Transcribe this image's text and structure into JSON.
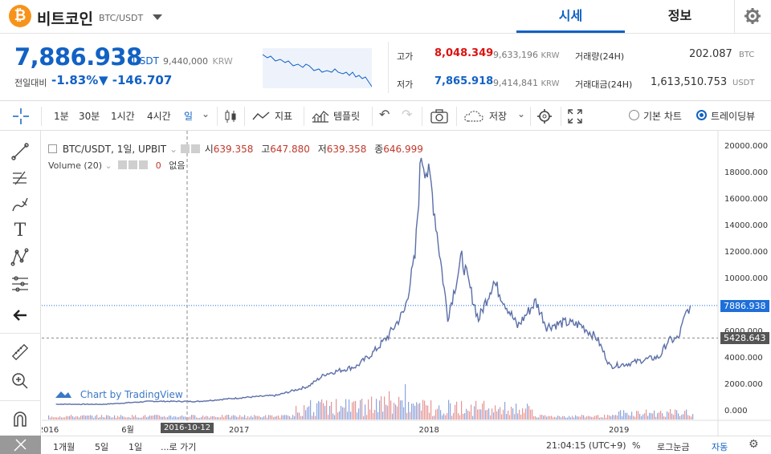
{
  "header": {
    "coin_symbol": "₿",
    "coin_name": "비트코인",
    "pair": "BTC/USDT",
    "tabs": [
      "시세",
      "정보"
    ]
  },
  "price": {
    "current": "7,886.938",
    "unit": "USDT",
    "krw": "9,440,000",
    "krw_unit": "KRW",
    "change_label": "전일대비",
    "change_pct": "-1.83%",
    "change_abs": "▼ -146.707",
    "high_label": "고가",
    "high": "8,048.349",
    "high_krw": "9,633,196",
    "low_label": "저가",
    "low": "7,865.918",
    "low_krw": "9,414,841",
    "krw_unit_small": "KRW",
    "volume_label": "거래량(24H)",
    "volume": "202.087",
    "volume_unit": "BTC",
    "amount_label": "거래대금(24H)",
    "amount": "1,613,510.753",
    "amount_unit": "USDT"
  },
  "toolbar": {
    "intervals": [
      "1분",
      "30분",
      "1시간",
      "4시간",
      "일"
    ],
    "indicators": "지표",
    "templates": "템플릿",
    "save": "저장",
    "basic_chart": "기본 차트",
    "tradingview": "트레이딩뷰"
  },
  "legend": {
    "symbol": "BTC/USDT, 1일, UPBIT",
    "open_label": "시",
    "open": "639.358",
    "high_label": "고",
    "high": "647.880",
    "low_label": "저",
    "low": "639.358",
    "close_label": "종",
    "close": "646.999",
    "volume": "Volume (20)",
    "volume_val": "0",
    "volume_extra": "없음"
  },
  "watermark": "Chart by TradingView",
  "bottom": {
    "ranges": [
      "1개월",
      "5일",
      "1일",
      "...로 가기"
    ],
    "time": "21:04:15 (UTC+9)",
    "percent": "%",
    "log": "로그눈금",
    "auto": "자동"
  },
  "colors": {
    "accent": "#1261c4",
    "up": "#d11",
    "down": "#1261c4"
  },
  "chart_data": {
    "type": "line",
    "title": "BTC/USDT, 1일, UPBIT",
    "y_ticks": [
      "20000.000",
      "18000.000",
      "16000.000",
      "14000.000",
      "12000.000",
      "10000.000",
      "8000.000",
      "6000.000",
      "4000.000",
      "2000.000",
      "0.000"
    ],
    "x_ticks": [
      "2016",
      "6월",
      "2017",
      "2018",
      "2019"
    ],
    "x_highlight": "2016-10-12",
    "ylim": [
      0,
      20000
    ],
    "current_price_label": "7886.938",
    "reference_price_label": "5428.643",
    "current_price": 7886.938,
    "reference_price": 5428.643,
    "x": [
      "2016-01",
      "2016-04",
      "2016-07",
      "2016-10",
      "2017-01",
      "2017-03",
      "2017-05",
      "2017-06",
      "2017-08",
      "2017-09",
      "2017-10",
      "2017-11",
      "2017-12-05",
      "2017-12-17",
      "2018-01-05",
      "2018-02-06",
      "2018-03-05",
      "2018-04-06",
      "2018-05-05",
      "2018-06-20",
      "2018-07-25",
      "2018-08-15",
      "2018-09-20",
      "2018-10-20",
      "2018-11-20",
      "2018-12-15",
      "2019-01-20",
      "2019-02-20",
      "2019-03-20",
      "2019-04-05",
      "2019-04-25",
      "2019-05-10",
      "2019-05-18"
    ],
    "values": [
      430,
      420,
      650,
      640,
      950,
      1100,
      1800,
      2700,
      3300,
      4300,
      5600,
      7500,
      11500,
      19400,
      17000,
      7000,
      11500,
      6800,
      9700,
      6300,
      8200,
      6300,
      6600,
      6400,
      5400,
      3300,
      3500,
      3800,
      4000,
      5200,
      5400,
      7300,
      7887
    ]
  }
}
